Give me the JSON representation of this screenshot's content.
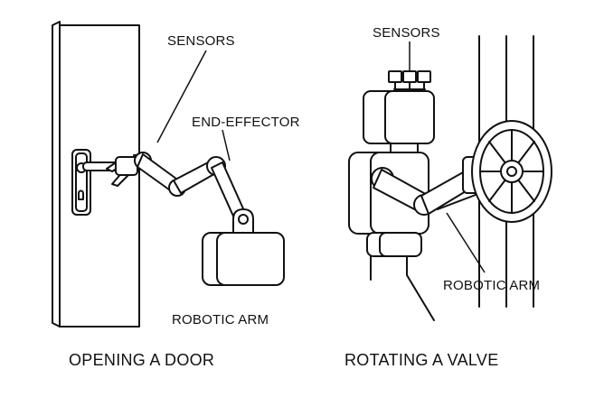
{
  "panels": [
    {
      "caption": "OPENING A DOOR",
      "labels": {
        "sensors": "SENSORS",
        "end_effector": "END-EFFECTOR",
        "robotic_arm": "ROBOTIC ARM"
      }
    },
    {
      "caption": "ROTATING A VALVE",
      "labels": {
        "sensors": "SENSORS",
        "robotic_arm": "ROBOTIC ARM"
      }
    }
  ],
  "colors": {
    "ink": "#111111",
    "background": "#ffffff"
  }
}
